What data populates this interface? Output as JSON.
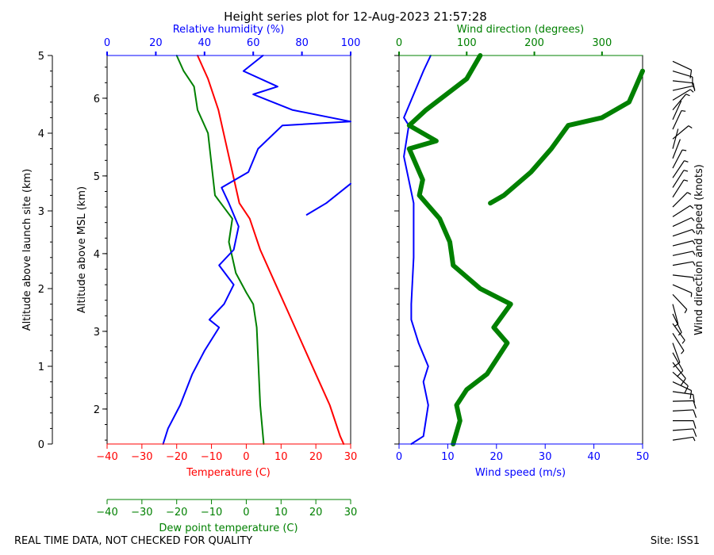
{
  "title": "Height series plot for 12-Aug-2023 21:57:28",
  "footer": {
    "left": "REAL TIME DATA, NOT CHECKED FOR QUALITY",
    "right": "Site: ISS1"
  },
  "colors": {
    "temperature": "#ff0000",
    "dewpoint": "#008000",
    "humidity": "#0000ff",
    "wind_speed": "#0000ff",
    "wind_direction": "#008000",
    "barbs": "#000000"
  },
  "axes": {
    "launch_site_label": "Altitude above launch site (km)",
    "msl_label": "Altitude above MSL (km)",
    "humidity_label": "Relative humidity (%)",
    "temperature_label": "Temperature (C)",
    "dewpoint_label": "Dew point temperature (C)",
    "wind_direction_label": "Wind direction (degrees)",
    "wind_speed_label": "Wind speed (m/s)",
    "barb_label": "Wind direction and speed (knots)"
  },
  "chart_data": [
    {
      "type": "line",
      "panel": "thermodynamic",
      "title": "Height series plot for 12-Aug-2023 21:57:28",
      "ylabel": "Altitude above launch site (km)",
      "ylabel_secondary": "Altitude above MSL (km)",
      "ylim": [
        0,
        5
      ],
      "ylim_msl": [
        1.55,
        6.55
      ],
      "yticks": [
        0,
        1,
        2,
        3,
        4,
        5
      ],
      "yticks_msl": [
        2,
        3,
        4,
        5,
        6
      ],
      "xaxes": [
        {
          "name": "Temperature (C)",
          "position": "bottom",
          "range": [
            -40,
            30
          ],
          "ticks": [
            -40,
            -30,
            -20,
            -10,
            0,
            10,
            20,
            30
          ]
        },
        {
          "name": "Dew point temperature (C)",
          "position": "bottom-offset",
          "range": [
            -40,
            30
          ],
          "ticks": [
            -40,
            -30,
            -20,
            -10,
            0,
            10,
            20,
            30
          ]
        },
        {
          "name": "Relative humidity (%)",
          "position": "top",
          "range": [
            0,
            100
          ],
          "ticks": [
            0,
            20,
            40,
            60,
            80,
            100
          ]
        }
      ],
      "series": [
        {
          "name": "Temperature (C)",
          "axis": "Temperature (C)",
          "points": [
            [
              28,
              0
            ],
            [
              27,
              0.1
            ],
            [
              24,
              0.5
            ],
            [
              20,
              0.9
            ],
            [
              16,
              1.3
            ],
            [
              12,
              1.7
            ],
            [
              8,
              2.1
            ],
            [
              4,
              2.5
            ],
            [
              1,
              2.9
            ],
            [
              -2,
              3.1
            ],
            [
              -4,
              3.5
            ],
            [
              -6,
              3.9
            ],
            [
              -8,
              4.3
            ],
            [
              -11,
              4.7
            ],
            [
              -14,
              5.0
            ]
          ]
        },
        {
          "name": "Dew point temperature (C)",
          "axis": "Dew point temperature (C)",
          "points": [
            [
              5,
              0
            ],
            [
              4,
              0.5
            ],
            [
              3.5,
              1
            ],
            [
              3,
              1.5
            ],
            [
              2,
              1.8
            ],
            [
              0,
              1.95
            ],
            [
              -3,
              2.2
            ],
            [
              -5,
              2.6
            ],
            [
              -4,
              2.9
            ],
            [
              -9,
              3.2
            ],
            [
              -10,
              3.6
            ],
            [
              -11,
              4.0
            ],
            [
              -14,
              4.3
            ],
            [
              -15,
              4.6
            ],
            [
              -18,
              4.8
            ],
            [
              -20,
              5.0
            ]
          ]
        },
        {
          "name": "Relative humidity (%)",
          "axis": "Relative humidity (%)",
          "points": [
            [
              23,
              0
            ],
            [
              25,
              0.2
            ],
            [
              30,
              0.5
            ],
            [
              35,
              0.9
            ],
            [
              40,
              1.2
            ],
            [
              46,
              1.5
            ],
            [
              42,
              1.6
            ],
            [
              48,
              1.8
            ],
            [
              52,
              2.05
            ],
            [
              46,
              2.3
            ],
            [
              52,
              2.5
            ],
            [
              54,
              2.8
            ],
            [
              50,
              3.1
            ],
            [
              47,
              3.3
            ],
            [
              58,
              3.5
            ],
            [
              62,
              3.8
            ],
            [
              72,
              4.1
            ],
            [
              100,
              4.15
            ],
            [
              76,
              4.3
            ],
            [
              60,
              4.5
            ],
            [
              70,
              4.6
            ],
            [
              56,
              4.8
            ],
            [
              64,
              5.0
            ]
          ]
        },
        {
          "name": "Relative humidity (%)",
          "axis": "Relative humidity (%)",
          "segment": "upper-branch",
          "points": [
            [
              82,
              2.95
            ],
            [
              90,
              3.1
            ],
            [
              100,
              3.35
            ]
          ]
        }
      ]
    },
    {
      "type": "line",
      "panel": "wind",
      "ylim": [
        0,
        5
      ],
      "xaxes": [
        {
          "name": "Wind speed (m/s)",
          "position": "bottom",
          "range": [
            0,
            50
          ],
          "ticks": [
            0,
            10,
            20,
            30,
            40,
            50
          ]
        },
        {
          "name": "Wind direction (degrees)",
          "position": "top",
          "range": [
            0,
            360
          ],
          "ticks": [
            0,
            100,
            200,
            300
          ]
        }
      ],
      "series": [
        {
          "name": "Wind speed (m/s)",
          "axis": "Wind speed (m/s)",
          "points": [
            [
              2.5,
              0
            ],
            [
              5,
              0.1
            ],
            [
              6,
              0.5
            ],
            [
              5,
              0.8
            ],
            [
              6,
              1.0
            ],
            [
              4,
              1.3
            ],
            [
              2.5,
              1.6
            ],
            [
              2.5,
              1.8
            ],
            [
              3,
              2.4
            ],
            [
              3,
              3.1
            ],
            [
              1,
              3.7
            ],
            [
              2,
              4.1
            ],
            [
              1,
              4.2
            ],
            [
              3,
              4.5
            ],
            [
              5,
              4.8
            ],
            [
              6.5,
              5.0
            ]
          ]
        },
        {
          "name": "Wind direction (degrees)",
          "axis": "Wind direction (degrees)",
          "points": [
            [
              80,
              0
            ],
            [
              90,
              0.3
            ],
            [
              85,
              0.5
            ],
            [
              100,
              0.7
            ],
            [
              130,
              0.9
            ],
            [
              160,
              1.3
            ],
            [
              140,
              1.5
            ],
            [
              165,
              1.8
            ],
            [
              120,
              2.0
            ],
            [
              80,
              2.3
            ],
            [
              75,
              2.6
            ],
            [
              60,
              2.9
            ],
            [
              30,
              3.2
            ],
            [
              35,
              3.4
            ],
            [
              15,
              3.8
            ],
            [
              55,
              3.9
            ],
            [
              15,
              4.1
            ],
            [
              40,
              4.3
            ],
            [
              70,
              4.5
            ],
            [
              100,
              4.7
            ],
            [
              120,
              5.0
            ]
          ]
        },
        {
          "name": "Wind direction (degrees)",
          "axis": "Wind direction (degrees)",
          "segment": "upper-branch",
          "points": [
            [
              135,
              3.1
            ],
            [
              155,
              3.2
            ],
            [
              195,
              3.5
            ],
            [
              225,
              3.8
            ],
            [
              250,
              4.1
            ],
            [
              300,
              4.2
            ],
            [
              340,
              4.4
            ],
            [
              350,
              4.6
            ],
            [
              360,
              4.8
            ]
          ]
        }
      ]
    }
  ]
}
